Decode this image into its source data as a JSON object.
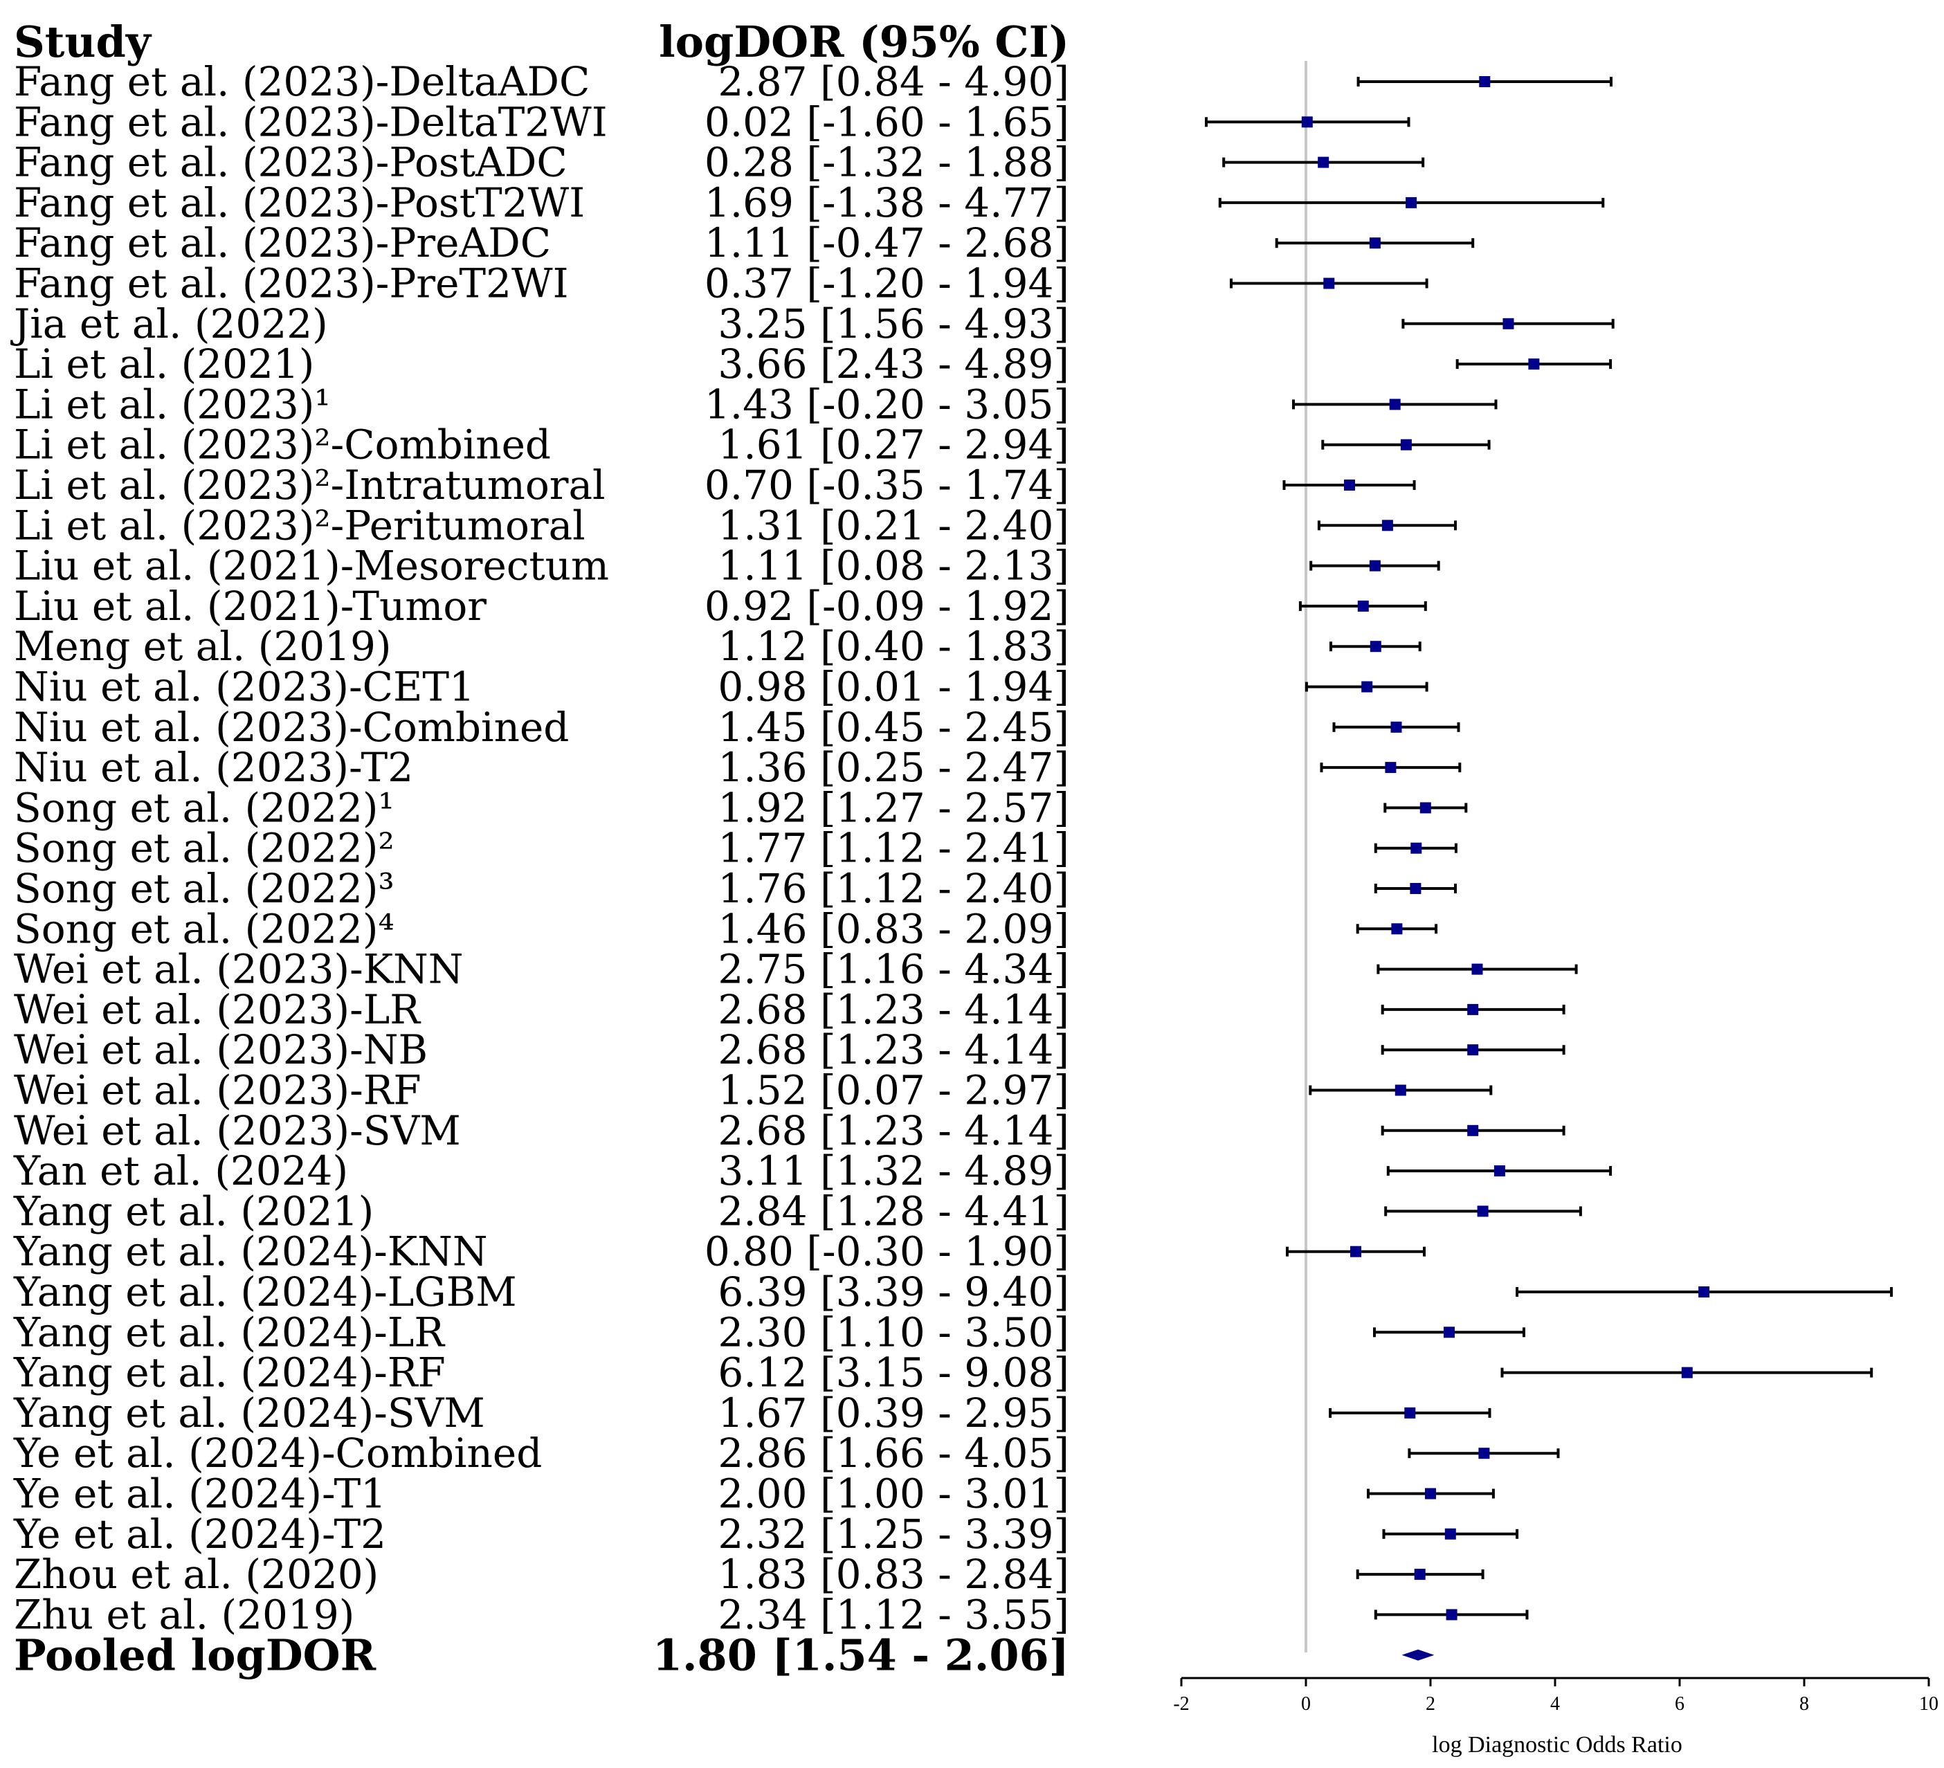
{
  "headers": {
    "study": "Study",
    "estimate": "logDOR (95% CI)"
  },
  "chart_data": {
    "type": "forest",
    "xlabel": "log Diagnostic Odds Ratio",
    "xlim": [
      -2,
      10
    ],
    "xticks": [
      "-2",
      "0",
      "2",
      "4",
      "6",
      "8",
      "10"
    ],
    "reference_line": 0,
    "studies": [
      {
        "label": "Fang et al. (2023)-DeltaADC",
        "text": "2.87 [0.84 - 4.90]",
        "est": 2.87,
        "lo": 0.84,
        "hi": 4.9
      },
      {
        "label": "Fang et al. (2023)-DeltaT2WI",
        "text": "0.02 [-1.60 - 1.65]",
        "est": 0.02,
        "lo": -1.6,
        "hi": 1.65
      },
      {
        "label": "Fang et al. (2023)-PostADC",
        "text": "0.28 [-1.32 - 1.88]",
        "est": 0.28,
        "lo": -1.32,
        "hi": 1.88
      },
      {
        "label": "Fang et al. (2023)-PostT2WI",
        "text": "1.69 [-1.38 - 4.77]",
        "est": 1.69,
        "lo": -1.38,
        "hi": 4.77
      },
      {
        "label": "Fang et al. (2023)-PreADC",
        "text": "1.11 [-0.47 - 2.68]",
        "est": 1.11,
        "lo": -0.47,
        "hi": 2.68
      },
      {
        "label": "Fang et al. (2023)-PreT2WI",
        "text": "0.37 [-1.20 - 1.94]",
        "est": 0.37,
        "lo": -1.2,
        "hi": 1.94
      },
      {
        "label": "Jia et al. (2022)",
        "text": "3.25 [1.56 - 4.93]",
        "est": 3.25,
        "lo": 1.56,
        "hi": 4.93
      },
      {
        "label": "Li et al. (2021)",
        "text": "3.66 [2.43 - 4.89]",
        "est": 3.66,
        "lo": 2.43,
        "hi": 4.89
      },
      {
        "label": "Li et al. (2023)¹",
        "text": "1.43 [-0.20 - 3.05]",
        "est": 1.43,
        "lo": -0.2,
        "hi": 3.05
      },
      {
        "label": "Li et al. (2023)²-Combined",
        "text": "1.61 [0.27 - 2.94]",
        "est": 1.61,
        "lo": 0.27,
        "hi": 2.94
      },
      {
        "label": "Li et al. (2023)²-Intratumoral",
        "text": "0.70 [-0.35 - 1.74]",
        "est": 0.7,
        "lo": -0.35,
        "hi": 1.74
      },
      {
        "label": "Li et al. (2023)²-Peritumoral",
        "text": "1.31 [0.21 - 2.40]",
        "est": 1.31,
        "lo": 0.21,
        "hi": 2.4
      },
      {
        "label": "Liu et al. (2021)-Mesorectum",
        "text": "1.11 [0.08 - 2.13]",
        "est": 1.11,
        "lo": 0.08,
        "hi": 2.13
      },
      {
        "label": "Liu et al. (2021)-Tumor",
        "text": "0.92 [-0.09 - 1.92]",
        "est": 0.92,
        "lo": -0.09,
        "hi": 1.92
      },
      {
        "label": "Meng et al. (2019)",
        "text": "1.12 [0.40 - 1.83]",
        "est": 1.12,
        "lo": 0.4,
        "hi": 1.83
      },
      {
        "label": "Niu et al. (2023)-CET1",
        "text": "0.98 [0.01 - 1.94]",
        "est": 0.98,
        "lo": 0.01,
        "hi": 1.94
      },
      {
        "label": "Niu et al. (2023)-Combined",
        "text": "1.45 [0.45 - 2.45]",
        "est": 1.45,
        "lo": 0.45,
        "hi": 2.45
      },
      {
        "label": "Niu et al. (2023)-T2",
        "text": "1.36 [0.25 - 2.47]",
        "est": 1.36,
        "lo": 0.25,
        "hi": 2.47
      },
      {
        "label": "Song et al. (2022)¹",
        "text": "1.92 [1.27 - 2.57]",
        "est": 1.92,
        "lo": 1.27,
        "hi": 2.57
      },
      {
        "label": "Song et al. (2022)²",
        "text": "1.77 [1.12 - 2.41]",
        "est": 1.77,
        "lo": 1.12,
        "hi": 2.41
      },
      {
        "label": "Song et al. (2022)³",
        "text": "1.76 [1.12 - 2.40]",
        "est": 1.76,
        "lo": 1.12,
        "hi": 2.4
      },
      {
        "label": "Song et al. (2022)⁴",
        "text": "1.46 [0.83 - 2.09]",
        "est": 1.46,
        "lo": 0.83,
        "hi": 2.09
      },
      {
        "label": "Wei et al. (2023)-KNN",
        "text": "2.75 [1.16 - 4.34]",
        "est": 2.75,
        "lo": 1.16,
        "hi": 4.34
      },
      {
        "label": "Wei et al. (2023)-LR",
        "text": "2.68 [1.23 - 4.14]",
        "est": 2.68,
        "lo": 1.23,
        "hi": 4.14
      },
      {
        "label": "Wei et al. (2023)-NB",
        "text": "2.68 [1.23 - 4.14]",
        "est": 2.68,
        "lo": 1.23,
        "hi": 4.14
      },
      {
        "label": "Wei et al. (2023)-RF",
        "text": "1.52 [0.07 - 2.97]",
        "est": 1.52,
        "lo": 0.07,
        "hi": 2.97
      },
      {
        "label": "Wei et al. (2023)-SVM",
        "text": "2.68 [1.23 - 4.14]",
        "est": 2.68,
        "lo": 1.23,
        "hi": 4.14
      },
      {
        "label": "Yan et al. (2024)",
        "text": "3.11 [1.32 - 4.89]",
        "est": 3.11,
        "lo": 1.32,
        "hi": 4.89
      },
      {
        "label": "Yang et al. (2021)",
        "text": "2.84 [1.28 - 4.41]",
        "est": 2.84,
        "lo": 1.28,
        "hi": 4.41
      },
      {
        "label": "Yang et al. (2024)-KNN",
        "text": "0.80 [-0.30 - 1.90]",
        "est": 0.8,
        "lo": -0.3,
        "hi": 1.9
      },
      {
        "label": "Yang et al. (2024)-LGBM",
        "text": "6.39 [3.39 - 9.40]",
        "est": 6.39,
        "lo": 3.39,
        "hi": 9.4
      },
      {
        "label": "Yang et al. (2024)-LR",
        "text": "2.30 [1.10 - 3.50]",
        "est": 2.3,
        "lo": 1.1,
        "hi": 3.5
      },
      {
        "label": "Yang et al. (2024)-RF",
        "text": "6.12 [3.15 - 9.08]",
        "est": 6.12,
        "lo": 3.15,
        "hi": 9.08
      },
      {
        "label": "Yang et al. (2024)-SVM",
        "text": "1.67 [0.39 - 2.95]",
        "est": 1.67,
        "lo": 0.39,
        "hi": 2.95
      },
      {
        "label": "Ye et al. (2024)-Combined",
        "text": "2.86 [1.66 - 4.05]",
        "est": 2.86,
        "lo": 1.66,
        "hi": 4.05
      },
      {
        "label": "Ye et al. (2024)-T1",
        "text": "2.00 [1.00 - 3.01]",
        "est": 2.0,
        "lo": 1.0,
        "hi": 3.01
      },
      {
        "label": "Ye et al. (2024)-T2",
        "text": "2.32 [1.25 - 3.39]",
        "est": 2.32,
        "lo": 1.25,
        "hi": 3.39
      },
      {
        "label": "Zhou et al. (2020)",
        "text": "1.83 [0.83 - 2.84]",
        "est": 1.83,
        "lo": 0.83,
        "hi": 2.84
      },
      {
        "label": "Zhu et al. (2019)",
        "text": "2.34 [1.12 - 3.55]",
        "est": 2.34,
        "lo": 1.12,
        "hi": 3.55
      }
    ],
    "pooled": {
      "label": "Pooled logDOR",
      "text": "1.80 [1.54 - 2.06]",
      "est": 1.8,
      "lo": 1.54,
      "hi": 2.06
    },
    "colors": {
      "point": "#00008b",
      "pooled": "#00008b",
      "ci": "#000000",
      "refline": "#c8c8c8"
    }
  }
}
